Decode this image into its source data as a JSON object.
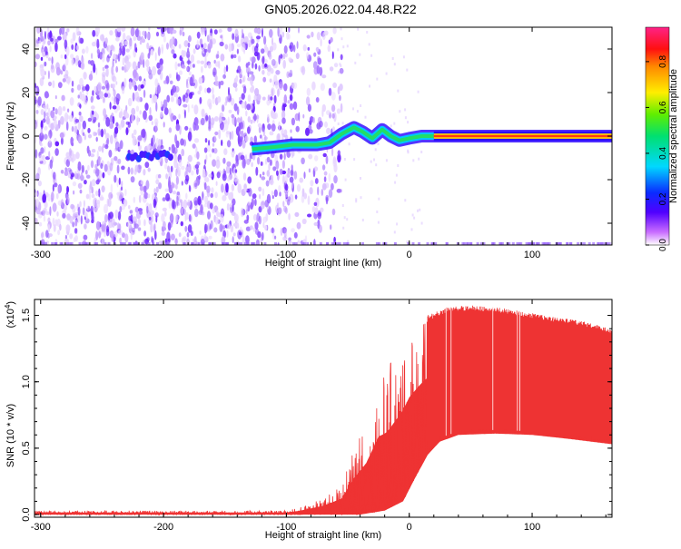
{
  "title": "GN05.2026.022.04.48.R22",
  "chart_data": [
    {
      "type": "heatmap",
      "name": "spectrogram",
      "xlabel": "Height of straight line (km)",
      "ylabel": "Frequency (Hz)",
      "xlim": [
        -305,
        165
      ],
      "ylim": [
        -50,
        50
      ],
      "xticks": [
        -300,
        -200,
        -100,
        0,
        100
      ],
      "xtick_labels": [
        "-300",
        "-200",
        "-100",
        "0",
        "100"
      ],
      "yticks": [
        -40,
        -20,
        0,
        20,
        40
      ],
      "ytick_labels": [
        "-40",
        "-20",
        "0",
        "20",
        "40"
      ],
      "colorbar": {
        "label": "Normalized spectral amplitude",
        "range": [
          0,
          0.95
        ],
        "ticks": [
          0.0,
          0.2,
          0.4,
          0.6,
          0.8
        ],
        "tick_labels": [
          "0.0",
          "0.2",
          "0.4",
          "0.6",
          "0.8"
        ],
        "colormap": "rainbow (white-purple-blue-cyan-green-yellow-orange-red-magenta)"
      },
      "features": {
        "noise_region_km": [
          -305,
          -80
        ],
        "signal_trace": [
          {
            "x": -128,
            "y": -6
          },
          {
            "x": -110,
            "y": -5
          },
          {
            "x": -95,
            "y": -4
          },
          {
            "x": -75,
            "y": -4
          },
          {
            "x": -65,
            "y": -3
          },
          {
            "x": -55,
            "y": 1
          },
          {
            "x": -45,
            "y": 4
          },
          {
            "x": -38,
            "y": 2
          },
          {
            "x": -30,
            "y": -1
          },
          {
            "x": -22,
            "y": 3
          },
          {
            "x": -15,
            "y": 0
          },
          {
            "x": -8,
            "y": -2
          },
          {
            "x": 0,
            "y": -1
          },
          {
            "x": 10,
            "y": 0
          },
          {
            "x": 20,
            "y": 0
          },
          {
            "x": 165,
            "y": 0
          }
        ],
        "strong_line_start_km": 20,
        "blob_center": {
          "x": -210,
          "y": -9
        }
      }
    },
    {
      "type": "area",
      "name": "snr",
      "xlabel": "Height of straight line (km)",
      "ylabel": "SNR (10 * v/v)",
      "y_multiplier": "(x10",
      "y_exponent": "4",
      "y_multiplier_close": ")",
      "xlim": [
        -305,
        165
      ],
      "ylim": [
        -0.02,
        1.62
      ],
      "xticks": [
        -300,
        -200,
        -100,
        0,
        100
      ],
      "xtick_labels": [
        "-300",
        "-200",
        "-100",
        "0",
        "100"
      ],
      "yticks": [
        0.0,
        0.5,
        1.0,
        1.5
      ],
      "ytick_labels": [
        "0.0",
        "0.5",
        "1.0",
        "1.5"
      ],
      "color": "#ee3333",
      "envelope_top": [
        {
          "x": -305,
          "y": 0.03
        },
        {
          "x": -100,
          "y": 0.03
        },
        {
          "x": -90,
          "y": 0.05
        },
        {
          "x": -70,
          "y": 0.12
        },
        {
          "x": -55,
          "y": 0.22
        },
        {
          "x": -45,
          "y": 0.5
        },
        {
          "x": -35,
          "y": 0.7
        },
        {
          "x": -25,
          "y": 1.05
        },
        {
          "x": -18,
          "y": 1.1
        },
        {
          "x": -10,
          "y": 1.25
        },
        {
          "x": 0,
          "y": 1.45
        },
        {
          "x": 10,
          "y": 1.5
        },
        {
          "x": 20,
          "y": 1.52
        },
        {
          "x": 30,
          "y": 1.56
        },
        {
          "x": 50,
          "y": 1.58
        },
        {
          "x": 80,
          "y": 1.55
        },
        {
          "x": 110,
          "y": 1.5
        },
        {
          "x": 140,
          "y": 1.46
        },
        {
          "x": 165,
          "y": 1.4
        }
      ],
      "envelope_bottom": [
        {
          "x": -305,
          "y": 0.0
        },
        {
          "x": -40,
          "y": 0.0
        },
        {
          "x": -20,
          "y": 0.03
        },
        {
          "x": -5,
          "y": 0.1
        },
        {
          "x": 5,
          "y": 0.28
        },
        {
          "x": 15,
          "y": 0.45
        },
        {
          "x": 25,
          "y": 0.55
        },
        {
          "x": 40,
          "y": 0.6
        },
        {
          "x": 70,
          "y": 0.61
        },
        {
          "x": 100,
          "y": 0.6
        },
        {
          "x": 130,
          "y": 0.57
        },
        {
          "x": 165,
          "y": 0.53
        }
      ]
    }
  ]
}
